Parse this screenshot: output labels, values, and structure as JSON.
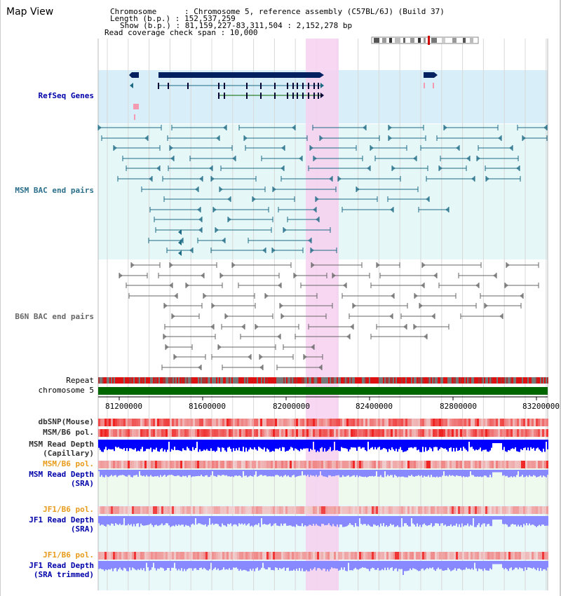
{
  "title": "Map View",
  "header": {
    "chromosome_label": "Chromosome      : Chromosome 5, reference assembly (C57BL/6J) (Build 37)",
    "length_label": "Length (b.p.) : 152,537,259",
    "show_label": "Show (b.p.) : 81,159,227-83,311,504 : 2,152,278 bp",
    "coverage_label": "Read coverage check span : 10,000"
  },
  "tracks": {
    "refseq": "RefSeq Genes",
    "msm_bac": "MSM BAC end pairs",
    "b6n_bac": "B6N BAC end pairs",
    "repeat": "Repeat",
    "chrom": "chromosome 5",
    "dbsnp": "dbSNP(Mouse)",
    "msm_b6_pol": "MSM/B6 pol.",
    "msm_read_depth_cap_1": "MSM Read Depth",
    "msm_read_depth_cap_2": "(Capillary)",
    "msm_b6_pol_sra": "MSM/B6 pol.",
    "msm_read_depth_sra_1": "MSM Read Depth",
    "msm_read_depth_sra_2": "(SRA)",
    "jf1_b6_pol": "JF1/B6 pol.",
    "jf1_read_depth_1": "JF1 Read Depth",
    "jf1_read_depth_2": "(SRA)",
    "jf1_b6_pol_trim": "JF1/B6 pol.",
    "jf1_read_depth_trim_1": "JF1 Read Depth",
    "jf1_read_depth_trim_2": "(SRA trimmed)"
  },
  "axis": {
    "ticks": [
      "81200000",
      "81600000",
      "82000000",
      "82400000",
      "82800000",
      "83200000"
    ]
  },
  "colors": {
    "highlight": "#f7d0f0",
    "refseq_bg": "#d8eef8",
    "bac_bg": "#e6f7f7",
    "gene": "#002060",
    "msm_bac": "#1c6a84",
    "b6n_bac": "#666666",
    "chrom": "#006600",
    "depth_blue": "#0000ff",
    "depth_light": "#8888ff"
  }
}
